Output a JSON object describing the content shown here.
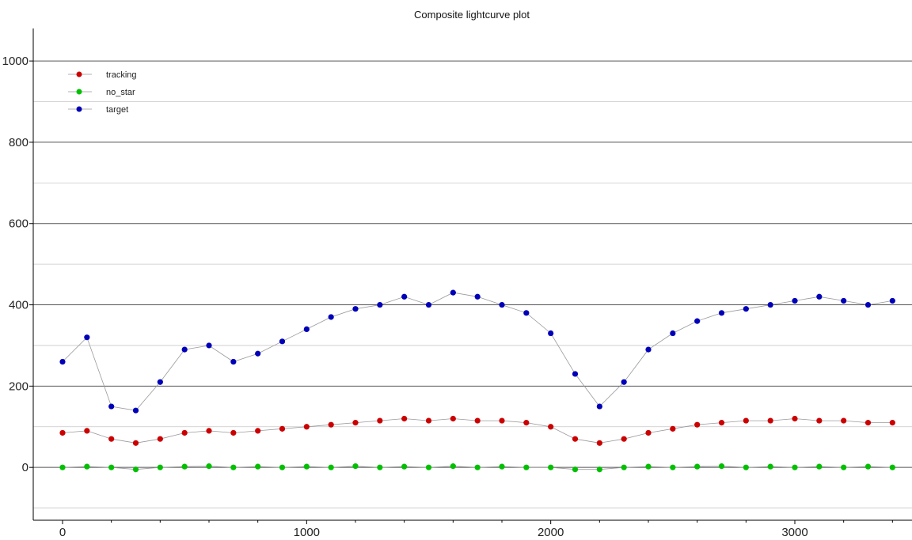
{
  "chart_data": {
    "type": "scatter",
    "title": "Composite lightcurve plot",
    "xlabel": "",
    "ylabel": "",
    "xlim": [
      -120,
      3480
    ],
    "ylim": [
      -130,
      1080
    ],
    "x_ticks": [
      "0",
      "1000",
      "2000",
      "3000"
    ],
    "y_ticks": [
      "0",
      "200",
      "400",
      "600",
      "800",
      "1000"
    ],
    "grid": "horizontal",
    "legend_position": "top-left",
    "connect_points": true,
    "series": [
      {
        "name": "tracking",
        "color": "#cc0000",
        "x": [
          0,
          100,
          200,
          300,
          400,
          500,
          600,
          700,
          800,
          900,
          1000,
          1100,
          1200,
          1300,
          1400,
          1500,
          1600,
          1700,
          1800,
          1900,
          2000,
          2100,
          2200,
          2300,
          2400,
          2500,
          2600,
          2700,
          2800,
          2900,
          3000,
          3100,
          3200,
          3300,
          3400
        ],
        "y": [
          85,
          90,
          70,
          60,
          70,
          85,
          90,
          85,
          90,
          95,
          100,
          105,
          110,
          115,
          120,
          115,
          120,
          115,
          115,
          110,
          100,
          70,
          60,
          70,
          85,
          95,
          105,
          110,
          115,
          115,
          120,
          115,
          115,
          110,
          110
        ]
      },
      {
        "name": "no_star",
        "color": "#00c000",
        "x": [
          0,
          100,
          200,
          300,
          400,
          500,
          600,
          700,
          800,
          900,
          1000,
          1100,
          1200,
          1300,
          1400,
          1500,
          1600,
          1700,
          1800,
          1900,
          2000,
          2100,
          2200,
          2300,
          2400,
          2500,
          2600,
          2700,
          2800,
          2900,
          3000,
          3100,
          3200,
          3300,
          3400
        ],
        "y": [
          0,
          2,
          0,
          -5,
          0,
          2,
          3,
          0,
          2,
          0,
          2,
          0,
          3,
          0,
          2,
          0,
          3,
          0,
          2,
          0,
          0,
          -5,
          -5,
          0,
          2,
          0,
          2,
          3,
          0,
          2,
          0,
          2,
          0,
          2,
          0
        ]
      },
      {
        "name": "target",
        "color": "#0000b8",
        "x": [
          0,
          100,
          200,
          300,
          400,
          500,
          600,
          700,
          800,
          900,
          1000,
          1100,
          1200,
          1300,
          1400,
          1500,
          1600,
          1700,
          1800,
          1900,
          2000,
          2100,
          2200,
          2300,
          2400,
          2500,
          2600,
          2700,
          2800,
          2900,
          3000,
          3100,
          3200,
          3300,
          3400
        ],
        "y": [
          260,
          320,
          150,
          140,
          210,
          290,
          300,
          260,
          280,
          310,
          340,
          370,
          390,
          400,
          420,
          400,
          430,
          420,
          400,
          380,
          330,
          230,
          150,
          210,
          290,
          330,
          360,
          380,
          390,
          400,
          410,
          420,
          410,
          400,
          410
        ]
      }
    ]
  }
}
